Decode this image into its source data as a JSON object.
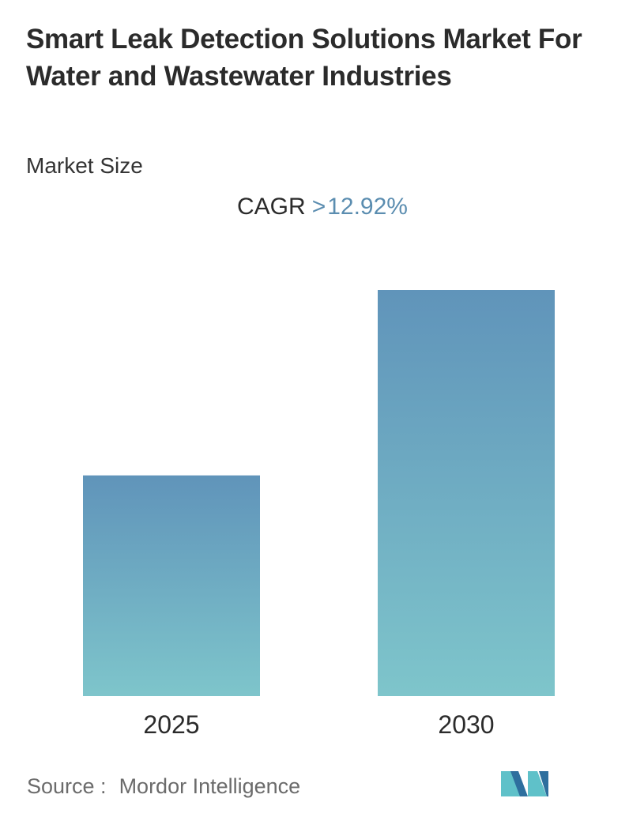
{
  "header": {
    "title": "Smart Leak Detection Solutions Market For Water and Wastewater Industries",
    "subtitle": "Market Size"
  },
  "cagr": {
    "label": "CAGR",
    "comparator": ">",
    "value": "12.92%"
  },
  "chart_data": {
    "type": "bar",
    "categories": [
      "2025",
      "2030"
    ],
    "values": [
      1.0,
      1.84
    ],
    "ylim": [
      0,
      1.84
    ],
    "grid": false,
    "legend": "none",
    "colors": {
      "bar_top": "#6094ba",
      "bar_bottom": "#7ec5cb"
    }
  },
  "footer": {
    "source_label": "Source :",
    "source_value": "Mordor Intelligence",
    "logo_colors": {
      "dark": "#2e6f9e",
      "light": "#5fc1c9"
    }
  }
}
